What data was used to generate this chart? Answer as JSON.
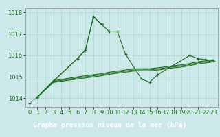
{
  "title": "Graphe pression niveau de la mer (hPa)",
  "xlabel_hours": [
    0,
    1,
    2,
    3,
    4,
    5,
    6,
    7,
    8,
    9,
    10,
    11,
    12,
    13,
    14,
    15,
    16,
    17,
    18,
    19,
    20,
    21,
    22,
    23
  ],
  "ylim": [
    1013.6,
    1018.2
  ],
  "yticks": [
    1014,
    1015,
    1016,
    1017,
    1018
  ],
  "line_color": "#1a6b1a",
  "bg_color": "#cce8e8",
  "grid_color": "#aad4d4",
  "title_bg": "#2d6b2d",
  "title_fontsize": 7.0,
  "tick_fontsize": 6.0,
  "series_dotted": {
    "x": [
      0,
      1
    ],
    "y": [
      1013.75,
      1014.05
    ]
  },
  "series_main": {
    "x": [
      1,
      3,
      6,
      7,
      8,
      9,
      10,
      11,
      12,
      14,
      15,
      16,
      20,
      21,
      22,
      23
    ],
    "y": [
      1014.05,
      1014.8,
      1015.85,
      1016.25,
      1017.8,
      1017.45,
      1017.1,
      1017.1,
      1016.05,
      1014.9,
      1014.75,
      1015.1,
      1016.0,
      1015.85,
      1015.8,
      1015.75
    ]
  },
  "series_peak": {
    "x": [
      1,
      3,
      6,
      7,
      8,
      9
    ],
    "y": [
      1014.05,
      1014.8,
      1015.85,
      1016.25,
      1017.8,
      1017.45
    ]
  },
  "series_flat_a": {
    "x": [
      1,
      3,
      6,
      9,
      10,
      11,
      12,
      13,
      14,
      15,
      16,
      17,
      18,
      19,
      20,
      21,
      22,
      23
    ],
    "y": [
      1014.05,
      1014.82,
      1015.0,
      1015.15,
      1015.22,
      1015.27,
      1015.32,
      1015.37,
      1015.38,
      1015.38,
      1015.42,
      1015.47,
      1015.52,
      1015.56,
      1015.62,
      1015.7,
      1015.75,
      1015.8
    ]
  },
  "series_flat_b": {
    "x": [
      1,
      3,
      6,
      9,
      10,
      11,
      12,
      13,
      14,
      15,
      16,
      17,
      18,
      19,
      20,
      21,
      22,
      23
    ],
    "y": [
      1014.05,
      1014.78,
      1014.95,
      1015.1,
      1015.17,
      1015.22,
      1015.27,
      1015.32,
      1015.33,
      1015.33,
      1015.37,
      1015.42,
      1015.47,
      1015.51,
      1015.57,
      1015.65,
      1015.7,
      1015.75
    ]
  },
  "series_flat_c": {
    "x": [
      1,
      3,
      6,
      9,
      10,
      11,
      12,
      13,
      14,
      15,
      16,
      17,
      18,
      19,
      20,
      21,
      22,
      23
    ],
    "y": [
      1014.05,
      1014.74,
      1014.9,
      1015.05,
      1015.12,
      1015.17,
      1015.22,
      1015.27,
      1015.28,
      1015.28,
      1015.32,
      1015.37,
      1015.42,
      1015.46,
      1015.52,
      1015.6,
      1015.65,
      1015.7
    ]
  }
}
